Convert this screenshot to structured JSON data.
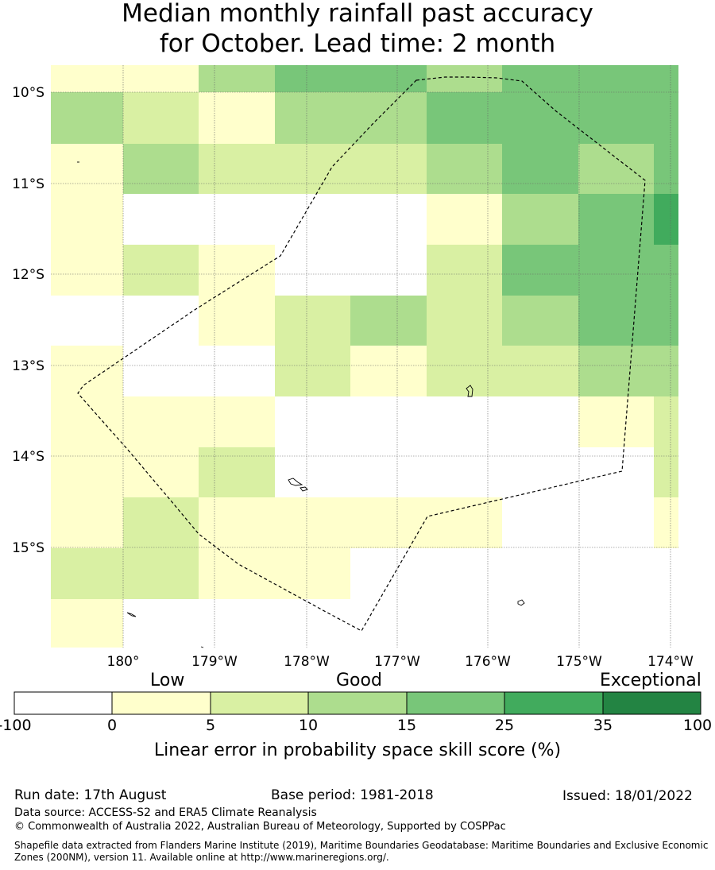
{
  "title": {
    "line1": "Median monthly rainfall past accuracy",
    "line2": "for October. Lead time: 2 month"
  },
  "map": {
    "lat_labels": [
      "10°S",
      "11°S",
      "12°S",
      "13°S",
      "14°S",
      "15°S"
    ],
    "lon_labels": [
      "180°",
      "179°W",
      "178°W",
      "177°W",
      "176°W",
      "175°W",
      "174°W"
    ],
    "category_colors": {
      "0": "#ffffff",
      "1": "#ffffcc",
      "2": "#d9f0a3",
      "3": "#addd8e",
      "4": "#78c679",
      "5": "#41ab5d",
      "6": "#238443"
    },
    "grid_columns": [
      64,
      155,
      250,
      346,
      441,
      537,
      632,
      728,
      823,
      854
    ],
    "grid_rows": [
      {
        "y0": 82,
        "y1": 116,
        "cells": [
          1,
          1,
          3,
          4,
          4,
          3,
          4,
          4,
          4
        ]
      },
      {
        "y0": 116,
        "y1": 181,
        "cells": [
          3,
          2,
          1,
          3,
          3,
          4,
          4,
          4,
          4
        ]
      },
      {
        "y0": 181,
        "y1": 244,
        "cells": [
          1,
          3,
          2,
          2,
          2,
          3,
          4,
          3,
          4
        ]
      },
      {
        "y0": 244,
        "y1": 308,
        "cells": [
          1,
          0,
          0,
          0,
          0,
          1,
          3,
          4,
          5
        ]
      },
      {
        "y0": 308,
        "y1": 372,
        "cells": [
          1,
          2,
          1,
          0,
          0,
          2,
          4,
          4,
          4
        ]
      },
      {
        "y0": 372,
        "y1": 435,
        "cells": [
          0,
          0,
          1,
          2,
          3,
          2,
          3,
          4,
          4
        ]
      },
      {
        "y0": 435,
        "y1": 499,
        "cells": [
          1,
          0,
          0,
          2,
          1,
          2,
          2,
          3,
          3
        ]
      },
      {
        "y0": 499,
        "y1": 563,
        "cells": [
          1,
          1,
          1,
          0,
          0,
          0,
          0,
          1,
          2
        ]
      },
      {
        "y0": 563,
        "y1": 626,
        "cells": [
          1,
          1,
          2,
          0,
          0,
          0,
          0,
          0,
          2
        ]
      },
      {
        "y0": 626,
        "y1": 690,
        "cells": [
          1,
          2,
          1,
          1,
          1,
          1,
          0,
          0,
          1
        ]
      },
      {
        "y0": 690,
        "y1": 754,
        "cells": [
          2,
          2,
          1,
          1,
          0,
          0,
          0,
          0,
          0
        ]
      },
      {
        "y0": 754,
        "y1": 815,
        "cells": [
          1,
          0,
          0,
          0,
          0,
          0,
          0,
          0,
          0
        ]
      }
    ]
  },
  "legend": {
    "low": "Low",
    "good": "Good",
    "exceptional": "Exceptional",
    "ticks": [
      "-100",
      "0",
      "5",
      "10",
      "15",
      "25",
      "35",
      "100"
    ],
    "colors": [
      "#ffffff",
      "#ffffcc",
      "#d9f0a3",
      "#addd8e",
      "#78c679",
      "#41ab5d",
      "#238443"
    ],
    "axis_label": "Linear error in probability space skill score (%)"
  },
  "footer": {
    "run_date": "Run date: 17th August",
    "base_period": "Base period: 1981-2018",
    "issued": "Issued: 18/01/2022",
    "data_source": "Data source: ACCESS-S2 and ERA5 Climate Reanalysis",
    "copyright": "© Commonwealth of Australia 2022, Australian Bureau of Meteorology, Supported by COSPPac",
    "shapefile": "Shapefile data extracted from Flanders Marine Institute (2019), Maritime Boundaries Geodatabase: Maritime Boundaries and Exclusive Economic Zones (200NM), version 11. Available online at http://www.marineregions.org/."
  }
}
